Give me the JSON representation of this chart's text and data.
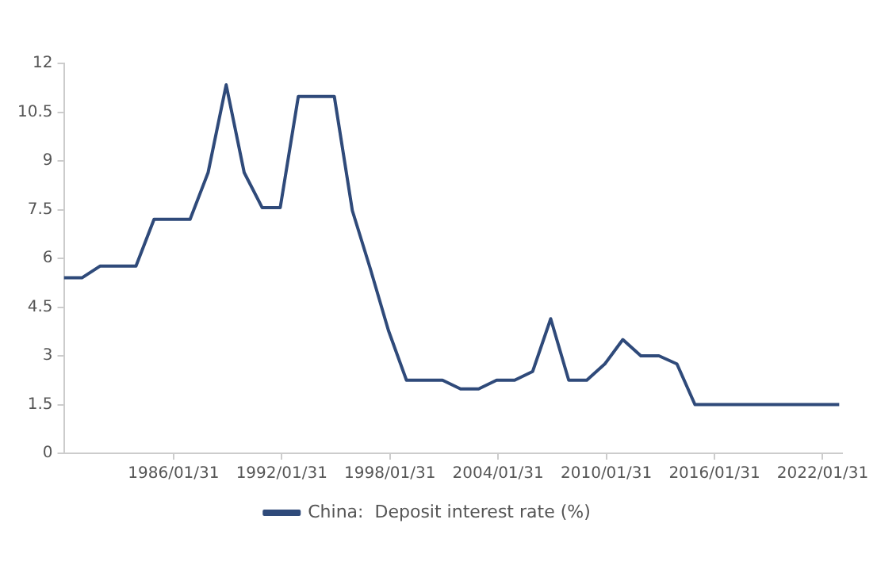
{
  "chart_data": {
    "type": "line",
    "x": [
      "1980",
      "1981",
      "1982",
      "1983",
      "1984",
      "1985",
      "1986",
      "1987",
      "1988",
      "1989",
      "1990",
      "1991",
      "1992",
      "1993",
      "1994",
      "1995",
      "1996",
      "1997",
      "1998",
      "1999",
      "2000",
      "2001",
      "2002",
      "2003",
      "2004",
      "2005",
      "2006",
      "2007",
      "2008",
      "2009",
      "2010",
      "2011",
      "2012",
      "2013",
      "2014",
      "2015",
      "2016",
      "2017",
      "2018",
      "2019",
      "2020",
      "2021",
      "2022",
      "2023"
    ],
    "series": [
      {
        "name": "China:  Deposit interest rate (%)",
        "color": "#2f4a7a",
        "values": [
          5.4,
          5.4,
          5.76,
          5.76,
          5.76,
          7.2,
          7.2,
          7.2,
          8.64,
          11.34,
          8.64,
          7.56,
          7.56,
          10.98,
          10.98,
          10.98,
          7.47,
          5.67,
          3.78,
          2.25,
          2.25,
          2.25,
          1.98,
          1.98,
          2.25,
          2.25,
          2.52,
          4.14,
          2.25,
          2.25,
          2.75,
          3.5,
          3.0,
          3.0,
          2.75,
          1.5,
          1.5,
          1.5,
          1.5,
          1.5,
          1.5,
          1.5,
          1.5,
          1.5
        ]
      }
    ],
    "xlim": [
      "1980",
      "2023-03"
    ],
    "xticks": [
      {
        "value": "1986-01-31",
        "label": "1986/01/31"
      },
      {
        "value": "1992-01-31",
        "label": "1992/01/31"
      },
      {
        "value": "1998-01-31",
        "label": "1998/01/31"
      },
      {
        "value": "2004-01-31",
        "label": "2004/01/31"
      },
      {
        "value": "2010-01-31",
        "label": "2010/01/31"
      },
      {
        "value": "2016-01-31",
        "label": "2016/01/31"
      },
      {
        "value": "2022-01-31",
        "label": "2022/01/31"
      }
    ],
    "ylim": [
      0,
      12
    ],
    "yticks": [
      0,
      1.5,
      3,
      4.5,
      6,
      7.5,
      9,
      10.5,
      12
    ],
    "grid": false,
    "legend": "bottom",
    "marker": "none",
    "line_style": "solid"
  }
}
